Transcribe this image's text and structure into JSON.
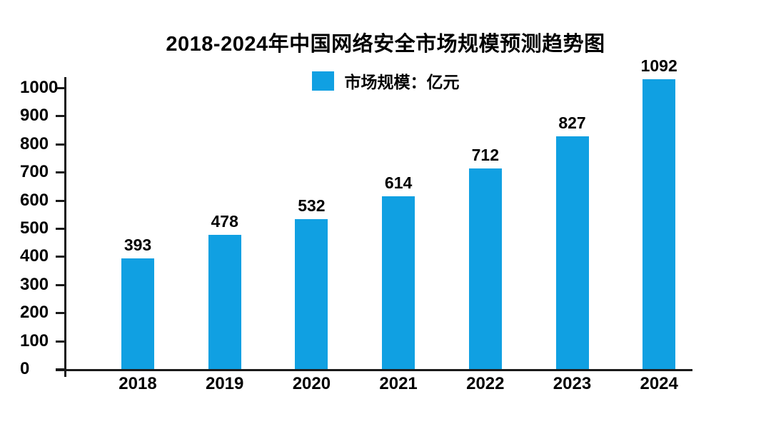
{
  "title": "2018-2024年中国网络安全市场规模预测趋势图",
  "legend": {
    "label": "市场规模：亿元",
    "swatch_color": "#10A0E2"
  },
  "chart_data": {
    "type": "bar",
    "title": "2018-2024年中国网络安全市场规模预测趋势图",
    "legend_label": "市场规模：亿元",
    "legend_position": "top-center",
    "categories": [
      "2018",
      "2019",
      "2020",
      "2021",
      "2022",
      "2023",
      "2024"
    ],
    "series": [
      {
        "name": "市场规模：亿元",
        "values": [
          393,
          478,
          532,
          614,
          712,
          827,
          1092
        ]
      }
    ],
    "xlabel": "",
    "ylabel": "",
    "ylim": [
      0,
      1030
    ],
    "yticks": [
      0,
      100,
      200,
      300,
      400,
      500,
      600,
      700,
      800,
      900,
      1000
    ],
    "grid": false,
    "value_labels_shown": true,
    "bar_color": "#10A0E2",
    "axis_color": "#1a1a1a",
    "text_color": "#000000",
    "background_color": "#ffffff"
  }
}
